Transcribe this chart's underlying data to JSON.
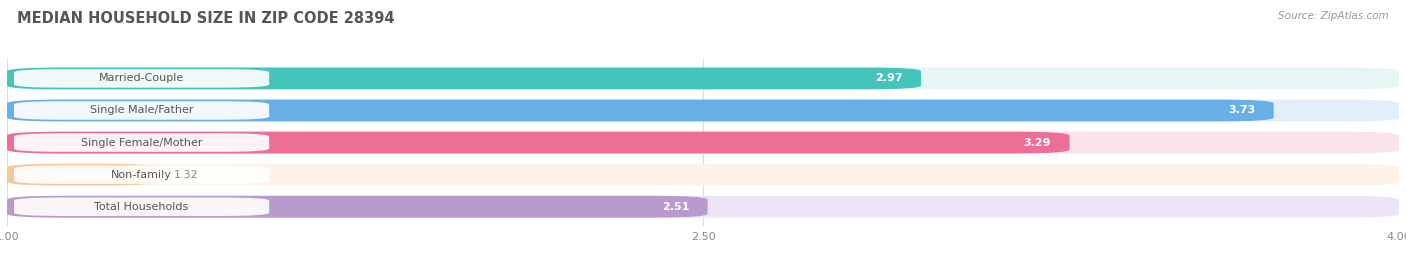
{
  "title": "MEDIAN HOUSEHOLD SIZE IN ZIP CODE 28394",
  "source": "Source: ZipAtlas.com",
  "categories": [
    "Married-Couple",
    "Single Male/Father",
    "Single Female/Mother",
    "Non-family",
    "Total Households"
  ],
  "values": [
    2.97,
    3.73,
    3.29,
    1.32,
    2.51
  ],
  "bar_colors": [
    "#45C4BC",
    "#6AAEE8",
    "#EF6E96",
    "#F5C89A",
    "#B89ACE"
  ],
  "bar_bg_colors": [
    "#E5F6F5",
    "#E2EEF9",
    "#FAE4EC",
    "#FDF3E8",
    "#EDE5F5"
  ],
  "xlim": [
    1.0,
    4.0
  ],
  "xticks": [
    1.0,
    2.5,
    4.0
  ],
  "background_color": "#ffffff",
  "title_color": "#555555",
  "source_color": "#999999",
  "label_bg_color": "#ffffff",
  "label_text_color": "#555555",
  "value_label_color_light": "#ffffff",
  "value_label_color_dark": "#888888",
  "grid_color": "#dddddd",
  "title_fontsize": 10.5,
  "bar_fontsize": 8,
  "tick_fontsize": 8
}
